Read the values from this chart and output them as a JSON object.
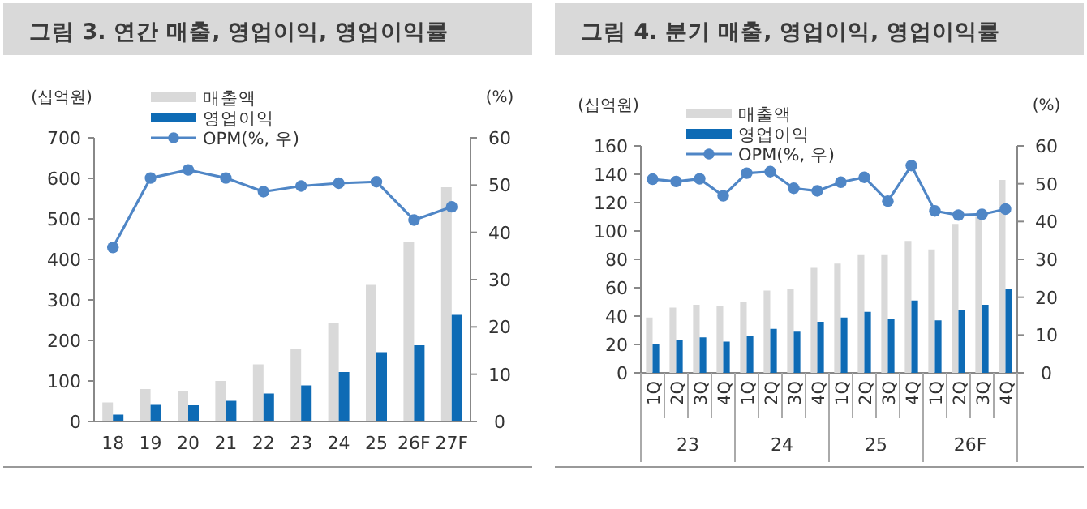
{
  "chart_data": [
    {
      "type": "bar",
      "title": "그림 3. 연간 매출, 영업이익, 영업이익률",
      "ylabel": "(십억원)",
      "y2label": "(%)",
      "categories": [
        "18",
        "19",
        "20",
        "21",
        "22",
        "23",
        "24",
        "25",
        "26F",
        "27F"
      ],
      "series": [
        {
          "name": "매출액",
          "color": "#d9d9d9",
          "values": [
            47,
            80,
            75,
            100,
            141,
            180,
            242,
            337,
            442,
            578
          ]
        },
        {
          "name": "영업이익",
          "color": "#0e6bb5",
          "values": [
            17,
            41,
            40,
            51,
            69,
            89,
            122,
            171,
            188,
            263
          ]
        },
        {
          "name": "OPM(%, 우)",
          "type": "line",
          "axis": "y2",
          "color": "#4f86c6",
          "values": [
            36.8,
            51.5,
            53.2,
            51.5,
            48.6,
            49.8,
            50.4,
            50.7,
            42.6,
            45.4
          ]
        }
      ],
      "ylim": [
        0,
        700
      ],
      "yticks": [
        0,
        100,
        200,
        300,
        400,
        500,
        600,
        700
      ],
      "y2lim": [
        0,
        60
      ],
      "y2ticks": [
        0,
        10,
        20,
        30,
        40,
        50,
        60
      ],
      "legend": "top left",
      "marker": "circle"
    },
    {
      "type": "bar",
      "title": "그림 4. 분기 매출, 영업이익, 영업이익률",
      "ylabel": "(십억원)",
      "y2label": "(%)",
      "categories": [
        "1Q",
        "2Q",
        "3Q",
        "4Q",
        "1Q",
        "2Q",
        "3Q",
        "4Q",
        "1Q",
        "2Q",
        "3Q",
        "4Q",
        "1Q",
        "2Q",
        "3Q",
        "4Q"
      ],
      "series": [
        {
          "name": "매출액",
          "color": "#d9d9d9",
          "values": [
            39,
            46,
            48,
            47,
            50,
            58,
            59,
            74,
            77,
            83,
            83,
            93,
            87,
            105,
            110,
            136
          ]
        },
        {
          "name": "영업이익",
          "color": "#0e6bb5",
          "values": [
            20,
            23,
            25,
            22,
            26,
            31,
            29,
            36,
            39,
            43,
            38,
            51,
            37,
            44,
            48,
            59
          ]
        },
        {
          "name": "OPM(%, 우)",
          "type": "line",
          "axis": "y2",
          "color": "#4f86c6",
          "values": [
            51.2,
            50.6,
            51.3,
            46.8,
            52.8,
            53.2,
            48.8,
            48.1,
            50.4,
            51.7,
            45.4,
            54.8,
            42.8,
            41.7,
            41.9,
            43.3
          ]
        }
      ],
      "ylim": [
        0,
        160
      ],
      "yticks": [
        0,
        20,
        40,
        60,
        80,
        100,
        120,
        140,
        160
      ],
      "y2lim": [
        0,
        60
      ],
      "y2ticks": [
        0,
        10,
        20,
        30,
        40,
        50,
        60
      ],
      "legend": "top left",
      "marker": "circle",
      "annotations": [
        "23",
        "24",
        "25",
        "26F"
      ]
    }
  ]
}
